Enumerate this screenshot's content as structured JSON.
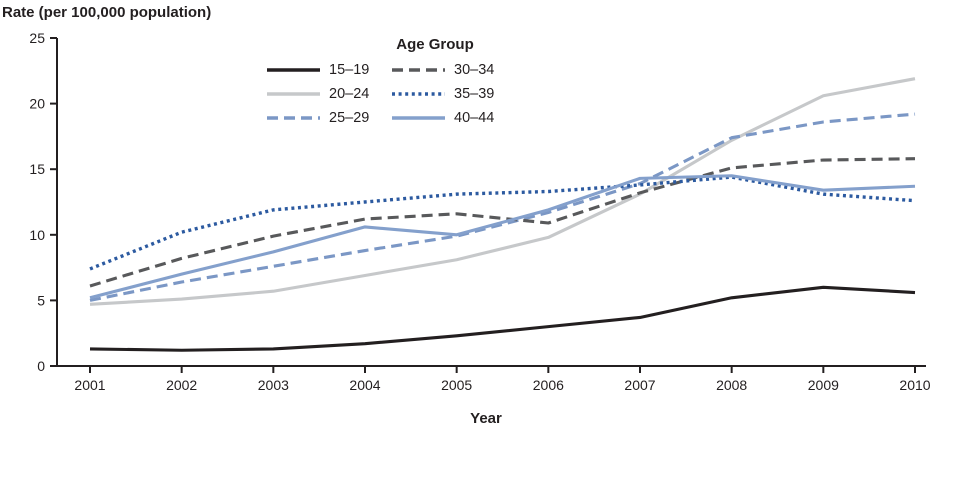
{
  "figure": {
    "y_axis_title": "Rate (per 100,000 population)",
    "x_axis_title": "Year",
    "legend_title": "Age Group"
  },
  "chart_data": {
    "type": "line",
    "title": "",
    "xlabel": "Year",
    "ylabel": "Rate (per 100,000 population)",
    "x": [
      2001,
      2002,
      2003,
      2004,
      2005,
      2006,
      2007,
      2008,
      2009,
      2010
    ],
    "ylim": [
      0,
      25
    ],
    "yticks": [
      0,
      5,
      10,
      15,
      20,
      25
    ],
    "grid": false,
    "legend_position": "top-center",
    "legend_title": "Age Group",
    "axis_color": "#231f20",
    "series": [
      {
        "name": "15–19",
        "color": "#231f20",
        "line_style": "solid",
        "values": [
          1.3,
          1.2,
          1.3,
          1.7,
          2.3,
          3.0,
          3.7,
          5.2,
          6.0,
          5.6
        ]
      },
      {
        "name": "20–24",
        "color": "#c6c8ca",
        "line_style": "solid",
        "values": [
          4.7,
          5.1,
          5.7,
          6.9,
          8.1,
          9.8,
          13.1,
          17.2,
          20.6,
          21.9
        ]
      },
      {
        "name": "25–29",
        "color": "#7b97c5",
        "line_style": "dash",
        "values": [
          5.0,
          6.4,
          7.6,
          8.8,
          9.9,
          11.7,
          13.9,
          17.4,
          18.6,
          19.2
        ]
      },
      {
        "name": "30–34",
        "color": "#58595b",
        "line_style": "dash",
        "values": [
          6.1,
          8.2,
          9.9,
          11.2,
          11.6,
          10.9,
          13.2,
          15.1,
          15.7,
          15.8
        ]
      },
      {
        "name": "35–39",
        "color": "#2c5aa0",
        "line_style": "dot",
        "values": [
          7.4,
          10.2,
          11.9,
          12.5,
          13.1,
          13.3,
          13.8,
          14.4,
          13.1,
          12.6
        ]
      },
      {
        "name": "40–44",
        "color": "#84a0cc",
        "line_style": "solid",
        "values": [
          5.2,
          7.0,
          8.7,
          10.6,
          10.0,
          11.9,
          14.3,
          14.5,
          13.4,
          13.7
        ]
      }
    ]
  }
}
